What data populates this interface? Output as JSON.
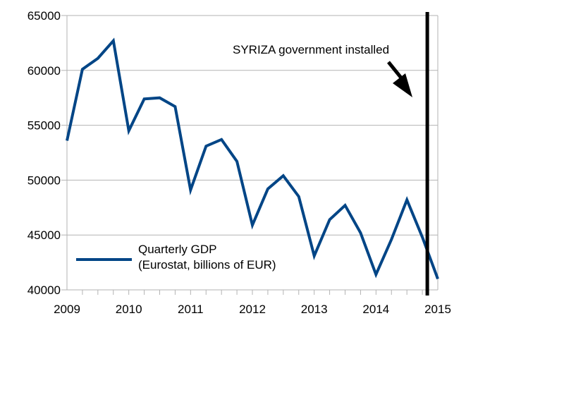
{
  "chart_data": {
    "type": "line",
    "title": "",
    "xlabel": "",
    "ylabel": "",
    "xlim": [
      2009,
      2015
    ],
    "ylim": [
      40000,
      65000
    ],
    "y_ticks": [
      40000,
      45000,
      50000,
      55000,
      60000,
      65000
    ],
    "y_tick_labels": [
      "40000",
      "45000",
      "50000",
      "55000",
      "60000",
      "65000"
    ],
    "x_ticks": [
      2009,
      2010,
      2011,
      2012,
      2013,
      2014,
      2015
    ],
    "x_tick_labels": [
      "2009",
      "2010",
      "2011",
      "2012",
      "2013",
      "2014",
      "2015"
    ],
    "grid": "horizontal",
    "legend_position": "bottom-left",
    "series": [
      {
        "name": "Quarterly GDP (Eurostat, billions of EUR)",
        "legend_lines": [
          "Quarterly GDP",
          "(Eurostat, billions of EUR)"
        ],
        "color": "#004586",
        "x": [
          2009.0,
          2009.25,
          2009.5,
          2009.75,
          2010.0,
          2010.25,
          2010.5,
          2010.75,
          2011.0,
          2011.25,
          2011.5,
          2011.75,
          2012.0,
          2012.25,
          2012.5,
          2012.75,
          2013.0,
          2013.25,
          2013.5,
          2013.75,
          2014.0,
          2014.25,
          2014.5,
          2014.75,
          2015.0
        ],
        "y": [
          53600,
          60100,
          61100,
          62700,
          54500,
          57400,
          57500,
          56700,
          49100,
          53100,
          53700,
          51700,
          45900,
          49200,
          50400,
          48500,
          43100,
          46400,
          47700,
          45200,
          41400,
          44600,
          48200,
          44800,
          41000
        ]
      }
    ],
    "annotations": [
      {
        "text": "SYRIZA government installed",
        "x": 2014.83,
        "color": "#000000"
      }
    ]
  }
}
